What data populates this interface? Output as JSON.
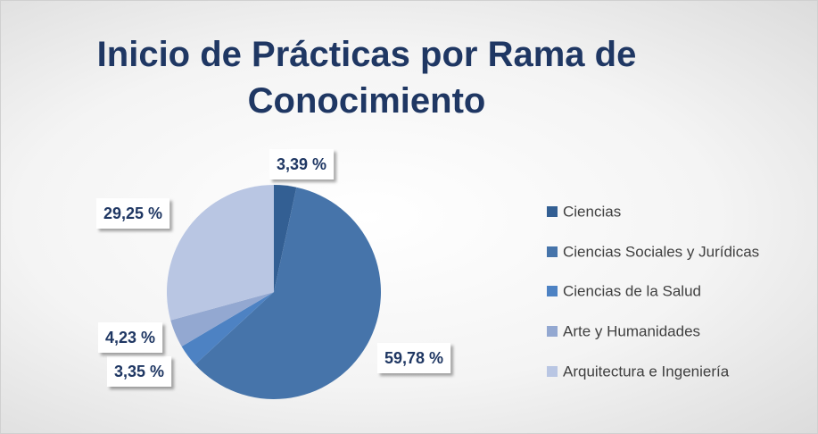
{
  "chart_data": {
    "type": "pie",
    "title": "Inicio de Prácticas por Rama de Conocimiento",
    "categories": [
      "Ciencias",
      "Ciencias Sociales y Jurídicas",
      "Ciencias de la Salud",
      "Arte y Humanidades",
      "Arquitectura e Ingeniería"
    ],
    "values": [
      3.39,
      59.78,
      3.35,
      4.23,
      29.25
    ],
    "value_labels": [
      "3,39 %",
      "59,78 %",
      "3,35 %",
      "4,23 %",
      "29,25 %"
    ],
    "colors": [
      "#335f93",
      "#4674aa",
      "#4d82c3",
      "#93a8d1",
      "#b9c6e3"
    ],
    "legend": "right"
  }
}
